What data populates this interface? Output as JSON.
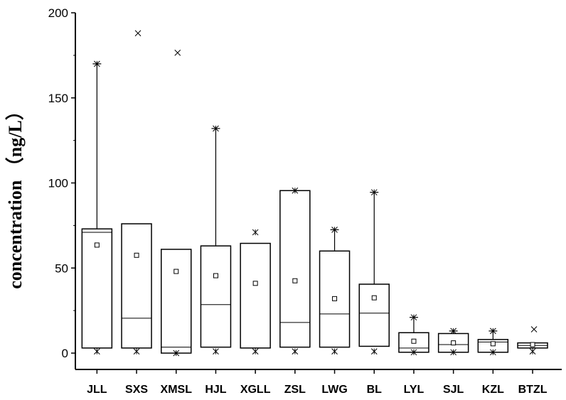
{
  "chart_data": {
    "type": "box",
    "ylabel": "concentration （ng/L）",
    "xlabel": "",
    "title": "",
    "ylim": [
      0,
      200
    ],
    "yticks": [
      0,
      50,
      100,
      150,
      200
    ],
    "grid": false,
    "categories": [
      "JLL",
      "SXS",
      "XMSL",
      "HJL",
      "XGLL",
      "ZSL",
      "LWG",
      "BL",
      "LYL",
      "SJL",
      "KZL",
      "BTZL"
    ],
    "boxes": [
      {
        "category": "JLL",
        "q1": 3,
        "median": 71,
        "q3": 73,
        "mean": 63.5,
        "whisker_low": 3,
        "whisker_high": 170,
        "min_marker": 1,
        "max_marker": 170,
        "outliers": []
      },
      {
        "category": "SXS",
        "q1": 3,
        "median": 20.5,
        "q3": 76,
        "mean": 57.5,
        "whisker_low": 3,
        "whisker_high": 76,
        "min_marker": 1,
        "max_marker": null,
        "outliers": [
          188
        ]
      },
      {
        "category": "XMSL",
        "q1": 0,
        "median": 3.5,
        "q3": 61,
        "mean": 48,
        "whisker_low": 0,
        "whisker_high": 61,
        "min_marker": 0,
        "max_marker": null,
        "outliers": [
          176.5
        ]
      },
      {
        "category": "HJL",
        "q1": 3.5,
        "median": 28.5,
        "q3": 63,
        "mean": 45.5,
        "whisker_low": 3.5,
        "whisker_high": 132,
        "min_marker": 1,
        "max_marker": 132,
        "outliers": []
      },
      {
        "category": "XGLL",
        "q1": 3,
        "median": 3,
        "q3": 64.5,
        "mean": 41,
        "whisker_low": 3,
        "whisker_high": 64.5,
        "min_marker": 1,
        "max_marker": 71,
        "outliers": []
      },
      {
        "category": "ZSL",
        "q1": 3.5,
        "median": 18,
        "q3": 95.5,
        "mean": 42.5,
        "whisker_low": 3.5,
        "whisker_high": 95.5,
        "min_marker": 1,
        "max_marker": 95.5,
        "outliers": []
      },
      {
        "category": "LWG",
        "q1": 3.5,
        "median": 23,
        "q3": 60,
        "mean": 32,
        "whisker_low": 3.5,
        "whisker_high": 72.5,
        "min_marker": 1,
        "max_marker": 72.5,
        "outliers": []
      },
      {
        "category": "BL",
        "q1": 4,
        "median": 23.5,
        "q3": 40.5,
        "mean": 32.5,
        "whisker_low": 4,
        "whisker_high": 94.5,
        "min_marker": 1,
        "max_marker": 94.5,
        "outliers": []
      },
      {
        "category": "LYL",
        "q1": 0.5,
        "median": 3,
        "q3": 12,
        "mean": 7,
        "whisker_low": 0.5,
        "whisker_high": 21,
        "min_marker": 0.5,
        "max_marker": 21,
        "outliers": []
      },
      {
        "category": "SJL",
        "q1": 0.5,
        "median": 5,
        "q3": 11.5,
        "mean": 6,
        "whisker_low": 0.5,
        "whisker_high": 13,
        "min_marker": 0.5,
        "max_marker": 13,
        "outliers": []
      },
      {
        "category": "KZL",
        "q1": 0.5,
        "median": 6.5,
        "q3": 8,
        "mean": 5.5,
        "whisker_low": 0.5,
        "whisker_high": 13,
        "min_marker": 0.5,
        "max_marker": 13,
        "outliers": []
      },
      {
        "category": "BTZL",
        "q1": 3,
        "median": 4.5,
        "q3": 6,
        "mean": 5,
        "whisker_low": 3,
        "whisker_high": 6,
        "min_marker": 1,
        "max_marker": null,
        "outliers": [
          14
        ]
      }
    ]
  }
}
